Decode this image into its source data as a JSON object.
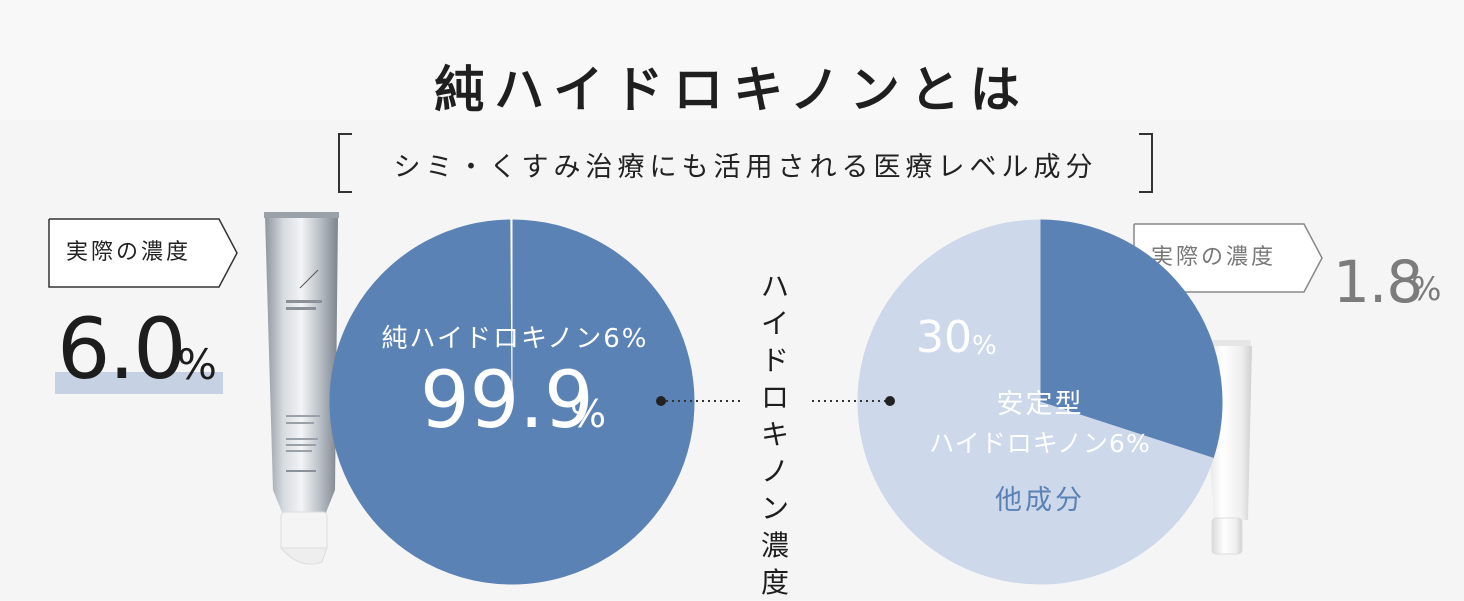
{
  "title": "純ハイドロキノンとは",
  "subtitle": "シミ・くすみ治療にも活用される医療レベル成分",
  "center_label": "ハイドロキノン濃度",
  "left": {
    "tag": "実際の濃度",
    "concentration_value": "6.0",
    "concentration_unit": "%",
    "pie_label": "純ハイドロキノン6%",
    "pie_value": "99.9",
    "pie_unit": "%"
  },
  "right": {
    "tag": "実際の濃度",
    "concentration_value": "1.8",
    "concentration_unit": "%",
    "slice_value": "30",
    "slice_unit": "%",
    "slice_label_line1": "安定型",
    "slice_label_line2": "ハイドロキノン6%",
    "rest_label": "他成分"
  },
  "colors": {
    "dark_blue": "#5b82b5",
    "light_blue": "#cdd8ea",
    "highlight": "#c6d1e3"
  },
  "chart_data": [
    {
      "type": "pie",
      "values": [
        99.9,
        0.1
      ],
      "labels": [
        "純ハイドロキノン6%",
        ""
      ],
      "colors": [
        "#5b82b5",
        "#ffffff"
      ]
    },
    {
      "type": "pie",
      "values": [
        30,
        70
      ],
      "labels": [
        "安定型 ハイドロキノン6%",
        "他成分"
      ],
      "colors": [
        "#5b82b5",
        "#cdd8ea"
      ]
    }
  ]
}
